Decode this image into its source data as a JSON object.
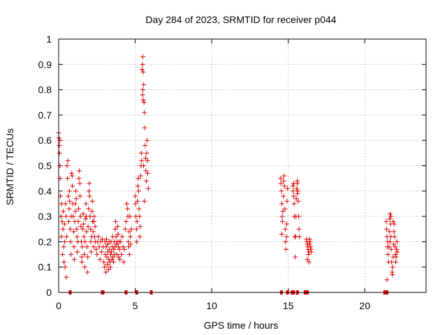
{
  "chart_data": {
    "type": "scatter",
    "title": "Day 284 of 2023, SRMTID for receiver p044",
    "xlabel": "GPS time / hours",
    "ylabel": "SRMTID / TECUs",
    "xlim": [
      0,
      24
    ],
    "ylim": [
      0,
      1
    ],
    "xticks": [
      0,
      5,
      10,
      15,
      20
    ],
    "yticks": [
      0,
      0.1,
      0.2,
      0.3,
      0.4,
      0.5,
      0.6,
      0.7,
      0.8,
      0.9,
      1
    ],
    "ytick_labels": [
      "0",
      "0.1",
      "0.2",
      "0.3",
      "0.4",
      "0.5",
      "0.6",
      "0.7",
      "0.8",
      "0.9",
      "1"
    ],
    "xtick_labels": [
      "0",
      "5",
      "10",
      "15",
      "20"
    ],
    "grid": true,
    "marker": "+",
    "color": "#dd0000",
    "series": [
      {
        "name": "p044",
        "points": [
          [
            0.0,
            0.63
          ],
          [
            0.02,
            0.61
          ],
          [
            0.04,
            0.58
          ],
          [
            0.05,
            0.55
          ],
          [
            0.07,
            0.6
          ],
          [
            0.08,
            0.5
          ],
          [
            0.1,
            0.45
          ],
          [
            0.12,
            0.38
          ],
          [
            0.15,
            0.3
          ],
          [
            0.18,
            0.22
          ],
          [
            0.2,
            0.35
          ],
          [
            0.22,
            0.28
          ],
          [
            0.25,
            0.15
          ],
          [
            0.28,
            0.25
          ],
          [
            0.3,
            0.32
          ],
          [
            0.33,
            0.18
          ],
          [
            0.35,
            0.12
          ],
          [
            0.38,
            0.27
          ],
          [
            0.4,
            0.2
          ],
          [
            0.42,
            0.1
          ],
          [
            0.45,
            0.35
          ],
          [
            0.48,
            0.3
          ],
          [
            0.5,
            0.06
          ],
          [
            0.52,
            0.22
          ],
          [
            0.55,
            0.5
          ],
          [
            0.58,
            0.45
          ],
          [
            0.6,
            0.52
          ],
          [
            0.62,
            0.38
          ],
          [
            0.65,
            0.28
          ],
          [
            0.68,
            0.33
          ],
          [
            0.7,
            0.4
          ],
          [
            0.72,
            0.36
          ],
          [
            0.75,
            0.25
          ],
          [
            0.78,
            0.2
          ],
          [
            0.8,
            0.15
          ],
          [
            0.82,
            0.3
          ],
          [
            0.85,
            0.47
          ],
          [
            0.88,
            0.46
          ],
          [
            0.9,
            0.42
          ],
          [
            0.92,
            0.35
          ],
          [
            0.95,
            0.3
          ],
          [
            0.98,
            0.24
          ],
          [
            1.0,
            0.18
          ],
          [
            1.02,
            0.13
          ],
          [
            1.05,
            0.28
          ],
          [
            1.08,
            0.35
          ],
          [
            1.1,
            0.32
          ],
          [
            1.12,
            0.4
          ],
          [
            1.15,
            0.37
          ],
          [
            1.18,
            0.25
          ],
          [
            1.2,
            0.22
          ],
          [
            1.22,
            0.16
          ],
          [
            1.25,
            0.2
          ],
          [
            1.28,
            0.28
          ],
          [
            1.3,
            0.33
          ],
          [
            1.32,
            0.45
          ],
          [
            1.35,
            0.48
          ],
          [
            1.38,
            0.43
          ],
          [
            1.4,
            0.38
          ],
          [
            1.42,
            0.3
          ],
          [
            1.45,
            0.26
          ],
          [
            1.48,
            0.2
          ],
          [
            1.5,
            0.14
          ],
          [
            1.52,
            0.12
          ],
          [
            1.55,
            0.18
          ],
          [
            1.58,
            0.25
          ],
          [
            1.6,
            0.31
          ],
          [
            1.62,
            0.27
          ],
          [
            1.65,
            0.22
          ],
          [
            1.68,
            0.15
          ],
          [
            1.7,
            0.1
          ],
          [
            1.72,
            0.2
          ],
          [
            1.75,
            0.29
          ],
          [
            1.78,
            0.35
          ],
          [
            1.8,
            0.3
          ],
          [
            1.82,
            0.24
          ],
          [
            1.85,
            0.18
          ],
          [
            1.88,
            0.08
          ],
          [
            1.9,
            0.14
          ],
          [
            1.92,
            0.26
          ],
          [
            1.95,
            0.33
          ],
          [
            1.98,
            0.4
          ],
          [
            2.0,
            0.43
          ],
          [
            2.02,
            0.38
          ],
          [
            2.05,
            0.3
          ],
          [
            2.08,
            0.25
          ],
          [
            2.1,
            0.2
          ],
          [
            2.12,
            0.16
          ],
          [
            2.15,
            0.22
          ],
          [
            2.18,
            0.32
          ],
          [
            2.2,
            0.36
          ],
          [
            2.22,
            0.28
          ],
          [
            2.25,
            0.24
          ],
          [
            2.28,
            0.18
          ],
          [
            2.3,
            0.28
          ],
          [
            2.32,
            0.3
          ],
          [
            2.35,
            0.22
          ],
          [
            2.38,
            0.26
          ],
          [
            2.4,
            0.2
          ],
          [
            2.45,
            0.17
          ],
          [
            2.5,
            0.15
          ],
          [
            2.55,
            0.2
          ],
          [
            2.6,
            0.22
          ],
          [
            2.65,
            0.18
          ],
          [
            2.7,
            0.13
          ],
          [
            2.75,
            0.2
          ],
          [
            2.8,
            0.16
          ],
          [
            2.85,
            0.21
          ],
          [
            2.9,
            0.18
          ],
          [
            2.95,
            0.12
          ],
          [
            3.0,
            0.1
          ],
          [
            3.02,
            0.2
          ],
          [
            3.05,
            0.15
          ],
          [
            3.08,
            0.08
          ],
          [
            3.1,
            0.18
          ],
          [
            3.12,
            0.21
          ],
          [
            3.15,
            0.14
          ],
          [
            3.18,
            0.11
          ],
          [
            3.2,
            0.19
          ],
          [
            3.22,
            0.16
          ],
          [
            3.25,
            0.09
          ],
          [
            3.28,
            0.13
          ],
          [
            3.3,
            0.2
          ],
          [
            3.32,
            0.17
          ],
          [
            3.35,
            0.12
          ],
          [
            3.38,
            0.1
          ],
          [
            3.4,
            0.15
          ],
          [
            3.42,
            0.2
          ],
          [
            3.45,
            0.16
          ],
          [
            3.48,
            0.13
          ],
          [
            3.5,
            0.18
          ],
          [
            3.52,
            0.22
          ],
          [
            3.55,
            0.14
          ],
          [
            3.58,
            0.12
          ],
          [
            3.6,
            0.17
          ],
          [
            3.62,
            0.2
          ],
          [
            3.65,
            0.15
          ],
          [
            3.68,
            0.18
          ],
          [
            3.7,
            0.25
          ],
          [
            3.72,
            0.28
          ],
          [
            3.75,
            0.22
          ],
          [
            3.78,
            0.19
          ],
          [
            3.8,
            0.15
          ],
          [
            3.82,
            0.2
          ],
          [
            3.85,
            0.26
          ],
          [
            3.88,
            0.23
          ],
          [
            3.9,
            0.18
          ],
          [
            3.92,
            0.14
          ],
          [
            3.95,
            0.2
          ],
          [
            3.98,
            0.17
          ],
          [
            4.0,
            0.13
          ],
          [
            4.05,
            0.2
          ],
          [
            4.1,
            0.15
          ],
          [
            4.15,
            0.22
          ],
          [
            4.2,
            0.18
          ],
          [
            4.25,
            0.12
          ],
          [
            4.3,
            0.17
          ],
          [
            4.35,
            0.25
          ],
          [
            4.4,
            0.28
          ],
          [
            4.45,
            0.35
          ],
          [
            4.5,
            0.33
          ],
          [
            4.52,
            0.3
          ],
          [
            4.55,
            0.2
          ],
          [
            4.58,
            0.18
          ],
          [
            4.6,
            0.24
          ],
          [
            4.62,
            0.15
          ],
          [
            4.65,
            0.3
          ],
          [
            4.68,
            0.22
          ],
          [
            4.7,
            0.19
          ],
          [
            4.75,
            0.25
          ],
          [
            5.0,
            0.38
          ],
          [
            5.02,
            0.35
          ],
          [
            5.05,
            0.3
          ],
          [
            5.08,
            0.25
          ],
          [
            5.1,
            0.2
          ],
          [
            5.12,
            0.28
          ],
          [
            5.15,
            0.36
          ],
          [
            5.18,
            0.42
          ],
          [
            5.2,
            0.45
          ],
          [
            5.22,
            0.4
          ],
          [
            5.25,
            0.33
          ],
          [
            5.28,
            0.3
          ],
          [
            5.3,
            0.22
          ],
          [
            5.32,
            0.26
          ],
          [
            5.35,
            0.46
          ],
          [
            5.38,
            0.5
          ],
          [
            5.4,
            0.55
          ],
          [
            5.42,
            0.52
          ],
          [
            5.45,
            0.88
          ],
          [
            5.48,
            0.9
          ],
          [
            5.5,
            0.93
          ],
          [
            5.52,
            0.87
          ],
          [
            5.55,
            0.82
          ],
          [
            5.58,
            0.75
          ],
          [
            5.6,
            0.71
          ],
          [
            5.62,
            0.65
          ],
          [
            5.65,
            0.58
          ],
          [
            5.68,
            0.53
          ],
          [
            5.7,
            0.48
          ],
          [
            5.72,
            0.44
          ],
          [
            5.75,
            0.55
          ],
          [
            5.78,
            0.6
          ],
          [
            5.8,
            0.52
          ],
          [
            5.82,
            0.47
          ],
          [
            5.85,
            0.41
          ],
          [
            5.5,
            0.8
          ],
          [
            5.48,
            0.78
          ],
          [
            5.52,
            0.76
          ],
          [
            5.55,
            0.5
          ],
          [
            5.6,
            0.36
          ],
          [
            14.5,
            0.45
          ],
          [
            14.52,
            0.43
          ],
          [
            14.55,
            0.4
          ],
          [
            14.58,
            0.35
          ],
          [
            14.6,
            0.3
          ],
          [
            14.62,
            0.28
          ],
          [
            14.65,
            0.32
          ],
          [
            14.68,
            0.38
          ],
          [
            14.7,
            0.44
          ],
          [
            14.72,
            0.46
          ],
          [
            14.75,
            0.42
          ],
          [
            14.78,
            0.33
          ],
          [
            14.8,
            0.25
          ],
          [
            14.82,
            0.2
          ],
          [
            14.85,
            0.17
          ],
          [
            14.88,
            0.22
          ],
          [
            14.9,
            0.27
          ],
          [
            14.92,
            0.36
          ],
          [
            14.95,
            0.41
          ],
          [
            14.58,
            0.23
          ],
          [
            15.3,
            0.42
          ],
          [
            15.32,
            0.4
          ],
          [
            15.35,
            0.38
          ],
          [
            15.38,
            0.35
          ],
          [
            15.4,
            0.3
          ],
          [
            15.42,
            0.22
          ],
          [
            15.45,
            0.14
          ],
          [
            15.48,
            0.22
          ],
          [
            15.5,
            0.3
          ],
          [
            15.52,
            0.37
          ],
          [
            15.55,
            0.41
          ],
          [
            15.58,
            0.44
          ],
          [
            15.6,
            0.43
          ],
          [
            15.62,
            0.4
          ],
          [
            15.65,
            0.36
          ],
          [
            15.68,
            0.3
          ],
          [
            15.7,
            0.25
          ],
          [
            15.72,
            0.22
          ],
          [
            15.35,
            0.43
          ],
          [
            15.6,
            0.39
          ],
          [
            16.2,
            0.21
          ],
          [
            16.22,
            0.2
          ],
          [
            16.25,
            0.19
          ],
          [
            16.28,
            0.18
          ],
          [
            16.3,
            0.17
          ],
          [
            16.32,
            0.15
          ],
          [
            16.35,
            0.16
          ],
          [
            16.38,
            0.19
          ],
          [
            16.4,
            0.21
          ],
          [
            16.42,
            0.2
          ],
          [
            16.45,
            0.18
          ],
          [
            16.48,
            0.17
          ],
          [
            16.5,
            0.16
          ],
          [
            16.35,
            0.12
          ],
          [
            16.25,
            0.13
          ],
          [
            21.4,
            0.28
          ],
          [
            21.42,
            0.25
          ],
          [
            21.45,
            0.22
          ],
          [
            21.48,
            0.18
          ],
          [
            21.5,
            0.2
          ],
          [
            21.52,
            0.15
          ],
          [
            21.55,
            0.12
          ],
          [
            21.58,
            0.18
          ],
          [
            21.6,
            0.24
          ],
          [
            21.62,
            0.29
          ],
          [
            21.65,
            0.31
          ],
          [
            21.68,
            0.27
          ],
          [
            21.7,
            0.22
          ],
          [
            21.72,
            0.17
          ],
          [
            21.75,
            0.12
          ],
          [
            21.78,
            0.08
          ],
          [
            21.8,
            0.07
          ],
          [
            21.82,
            0.1
          ],
          [
            21.85,
            0.14
          ],
          [
            21.88,
            0.19
          ],
          [
            21.9,
            0.24
          ],
          [
            21.92,
            0.27
          ],
          [
            21.95,
            0.22
          ],
          [
            21.98,
            0.18
          ],
          [
            22.0,
            0.15
          ],
          [
            22.02,
            0.12
          ],
          [
            22.05,
            0.14
          ],
          [
            22.08,
            0.17
          ],
          [
            22.1,
            0.2
          ],
          [
            22.12,
            0.16
          ],
          [
            21.45,
            0.05
          ],
          [
            21.7,
            0.3
          ],
          [
            21.85,
            0.28
          ],
          [
            21.65,
            0.2
          ]
        ]
      }
    ],
    "zero_markers_x": [
      0.75,
      2.85,
      4.4,
      5.1,
      14.55,
      14.95,
      15.25,
      15.35,
      15.6,
      16.1,
      16.25,
      21.3,
      21.45,
      6.05,
      2.9
    ]
  }
}
